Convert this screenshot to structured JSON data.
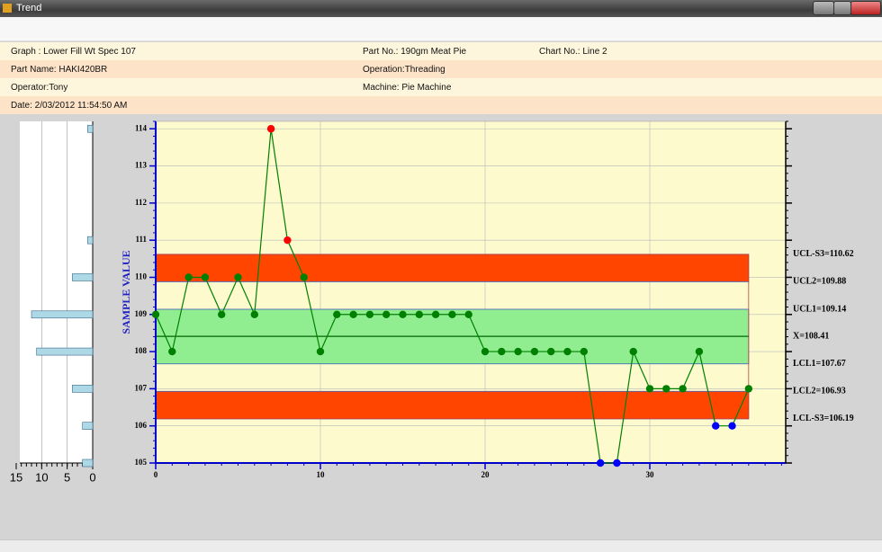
{
  "window": {
    "title": "Trend"
  },
  "info": {
    "graph": "Graph : Lower Fill Wt Spec 107",
    "part_no": "Part No.: 190gm Meat Pie",
    "chart_no": "Chart No.: Line 2",
    "part_name": "Part Name: HAKI420BR",
    "operation": "Operation:Threading",
    "operator": "Operator:Tony",
    "machine": "Machine: Pie Machine",
    "date": "Date: 2/03/2012 11:54:50 AM"
  },
  "chart_data": [
    {
      "type": "line",
      "y_label": "SAMPLE VALUE",
      "x": [
        0,
        1,
        2,
        3,
        4,
        5,
        6,
        7,
        8,
        9,
        10,
        11,
        12,
        13,
        14,
        15,
        16,
        17,
        18,
        19,
        20,
        21,
        22,
        23,
        24,
        25,
        26,
        27,
        28,
        29,
        30,
        31,
        32,
        33,
        34,
        35,
        36
      ],
      "values": [
        109,
        108,
        110,
        110,
        109,
        110,
        109,
        114,
        111,
        110,
        108,
        109,
        109,
        109,
        109,
        109,
        109,
        109,
        109,
        109,
        108,
        108,
        108,
        108,
        108,
        108,
        108,
        105,
        105,
        108,
        107,
        107,
        107,
        108,
        106,
        106,
        107
      ],
      "color": "#008000",
      "point_colors": [
        "#008000",
        "#008000",
        "#008000",
        "#008000",
        "#008000",
        "#008000",
        "#008000",
        "#ff0000",
        "#ff0000",
        "#008000",
        "#008000",
        "#008000",
        "#008000",
        "#008000",
        "#008000",
        "#008000",
        "#008000",
        "#008000",
        "#008000",
        "#008000",
        "#008000",
        "#008000",
        "#008000",
        "#008000",
        "#008000",
        "#008000",
        "#008000",
        "#0000ff",
        "#0000ff",
        "#008000",
        "#008000",
        "#008000",
        "#008000",
        "#008000",
        "#0000ff",
        "#0000ff",
        "#008000"
      ],
      "limits": [
        {
          "label": "UCL-S3=110.62",
          "value": 110.62
        },
        {
          "label": "UCL2=109.88",
          "value": 109.88
        },
        {
          "label": "UCL1=109.14",
          "value": 109.14
        },
        {
          "label": "X=108.41",
          "value": 108.41
        },
        {
          "label": "LCL1=107.67",
          "value": 107.67
        },
        {
          "label": "LCL2=106.93",
          "value": 106.93
        },
        {
          "label": "LCL-S3=106.19",
          "value": 106.19
        }
      ],
      "zone_colors": {
        "outer": "#ff4500",
        "inner": "#90ee90",
        "center_line": "#006400"
      },
      "xlim": [
        0,
        38.25
      ],
      "ylim": [
        105,
        114.2
      ],
      "xticks": [
        0,
        10,
        20,
        30
      ],
      "yticks": [
        105,
        106,
        107,
        108,
        109,
        110,
        111,
        112,
        113,
        114
      ],
      "grid": true
    },
    {
      "type": "bar",
      "orientation": "horizontal",
      "y": [
        105,
        106,
        107,
        108,
        109,
        110,
        111,
        112,
        113,
        114
      ],
      "values": [
        2,
        2,
        4,
        11,
        12,
        4,
        1,
        0,
        0,
        1
      ],
      "color": "#add8e6",
      "xlim": [
        0,
        15
      ],
      "xticks": [
        15,
        10,
        5,
        0
      ],
      "x_reversed": true,
      "grid": true
    }
  ]
}
